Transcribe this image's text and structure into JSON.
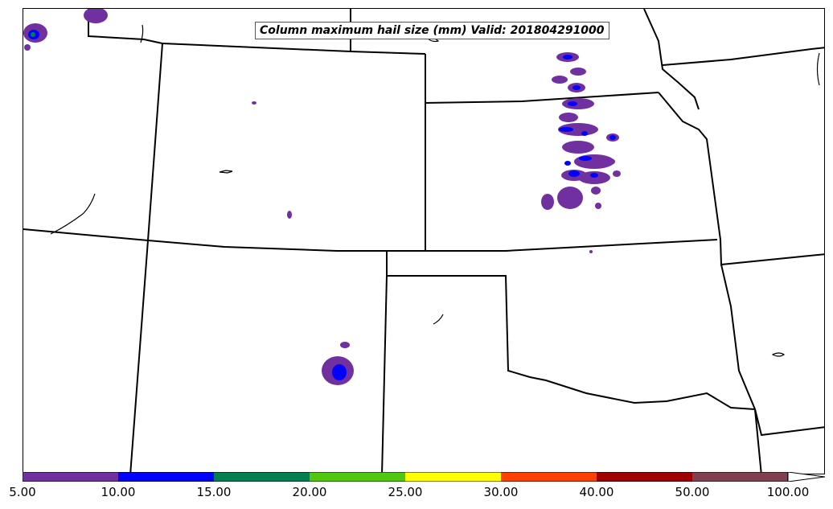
{
  "title": "Column maximum hail size (mm) Valid: 201804291000",
  "colorbar": {
    "tick_labels": [
      "5.00",
      "10.00",
      "15.00",
      "20.00",
      "25.00",
      "30.00",
      "40.00",
      "50.00",
      "100.00"
    ],
    "colors": [
      "#7030a0",
      "#0000ff",
      "#008050",
      "#50c810",
      "#ffff00",
      "#ff4000",
      "#a00000",
      "#804050"
    ],
    "extend": "max"
  },
  "hail_areas": [
    {
      "region": "northeast Colorado / Wyoming border",
      "max_category": "15.00-20.00"
    },
    {
      "region": "central Kansas / Nebraska",
      "max_category": "10.00-15.00"
    },
    {
      "region": "northeast New Mexico",
      "max_category": "10.00-15.00"
    },
    {
      "region": "north-central Colorado",
      "max_category": "5.00-10.00"
    },
    {
      "region": "southeast Colorado",
      "max_category": "5.00-10.00"
    }
  ]
}
